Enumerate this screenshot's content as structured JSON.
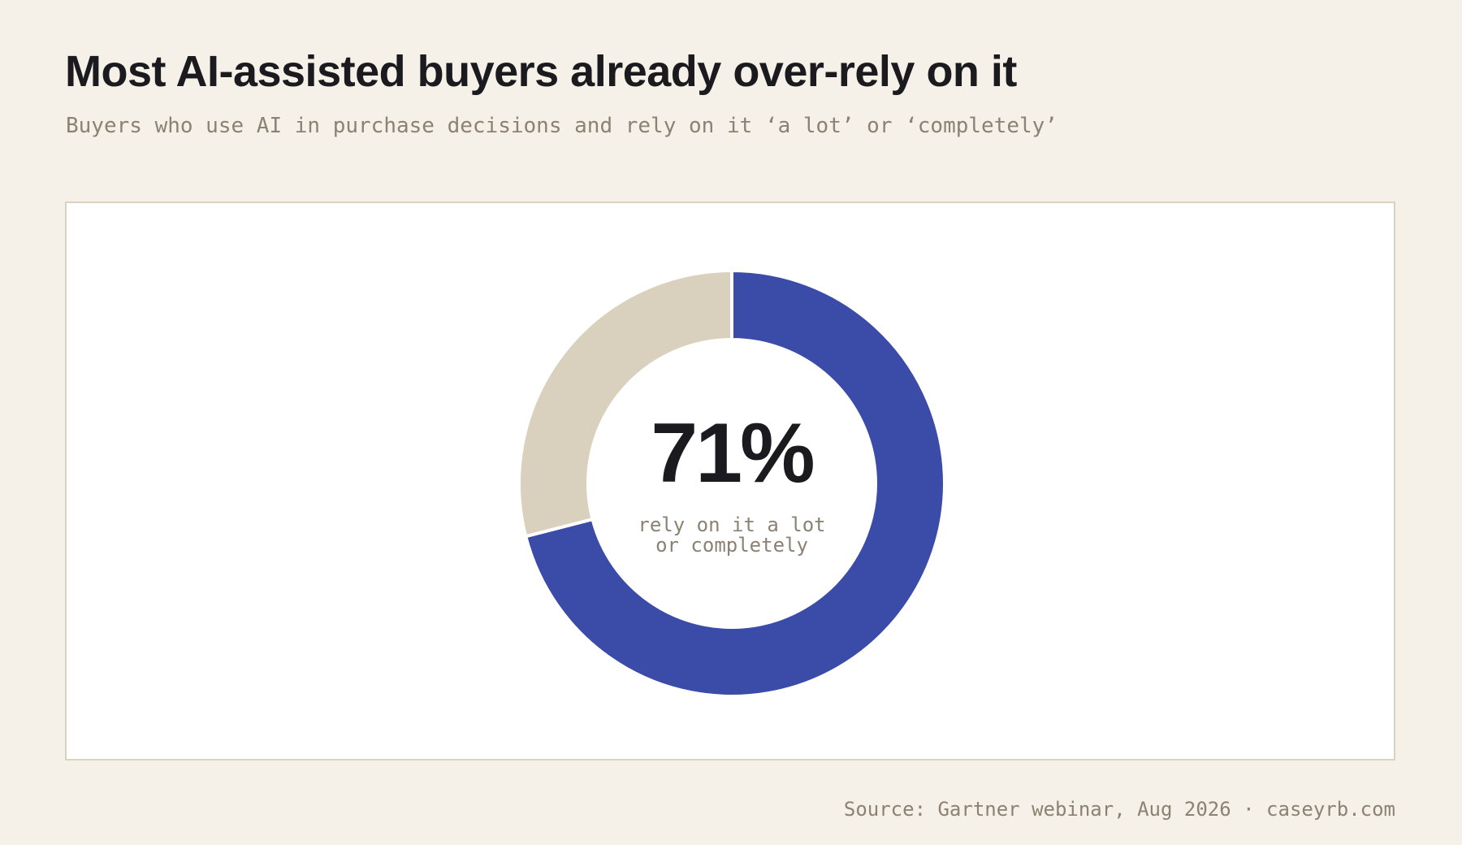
{
  "header": {
    "title": "Most AI-assisted buyers already over-rely on it",
    "subtitle": "Buyers who use AI in purchase decisions and rely on it ‘a lot’ or ‘completely’"
  },
  "chart_data": {
    "type": "pie",
    "variant": "donut",
    "categories": [
      "rely on it a lot or completely",
      ""
    ],
    "values": [
      71,
      29
    ],
    "colors": [
      "#3b4ca8",
      "#d9d0bd"
    ],
    "center_value": "71%",
    "center_label": "rely on it a lot\nor completely",
    "legend": "none"
  },
  "footer": {
    "source": "Source: Gartner webinar, Aug 2026 · caseyrb.com"
  },
  "colors": {
    "background": "#f5f1e8",
    "panel": "#ffffff",
    "panel_border": "#d9d2c1",
    "title": "#1a1a1f",
    "muted_text": "#8a8272"
  }
}
